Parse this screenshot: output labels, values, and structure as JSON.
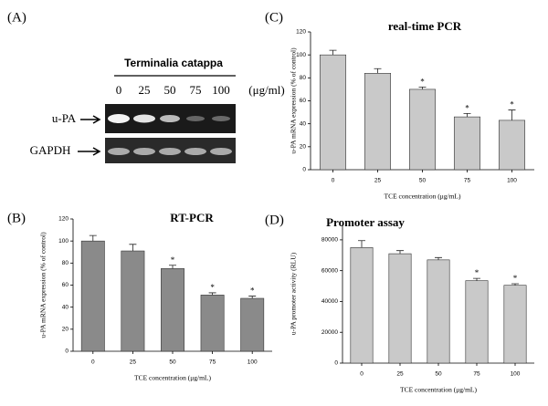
{
  "gel": {
    "panel_label": "(A)",
    "title": "Terminalia catappa",
    "lanes": [
      "0",
      "25",
      "50",
      "75",
      "100"
    ],
    "unit": "(μg/ml)",
    "rows": [
      "u-PA",
      "GAPDH"
    ]
  },
  "chart_data": [
    {
      "type": "bar",
      "panel_label": "(B)",
      "title": "RT-PCR",
      "x_label": "TCE concentration (μg/mL)",
      "y_label": "u-PA mRNA expression (% of control)",
      "categories": [
        "0",
        "25",
        "50",
        "75",
        "100"
      ],
      "values": [
        100,
        91,
        75,
        51,
        48
      ],
      "errors": [
        5,
        6,
        3,
        2,
        2
      ],
      "annotations": [
        null,
        null,
        "*",
        "*",
        "*"
      ],
      "color": "#8a8a8a",
      "ylim": [
        0,
        120
      ],
      "yticks": [
        0,
        20,
        40,
        60,
        80,
        100,
        120
      ]
    },
    {
      "type": "bar",
      "panel_label": "(C)",
      "title": "real-time PCR",
      "x_label": "TCE concentration (μg/mL)",
      "y_label": "u-PA mRNA expression (% of control)",
      "categories": [
        "0",
        "25",
        "50",
        "75",
        "100"
      ],
      "values": [
        100,
        84,
        70,
        46,
        43
      ],
      "errors": [
        4,
        4,
        2,
        3,
        9
      ],
      "annotations": [
        null,
        null,
        "*",
        "*",
        "*"
      ],
      "color": "#c9c9c9",
      "ylim": [
        0,
        120
      ],
      "yticks": [
        0,
        20,
        40,
        60,
        80,
        100,
        120
      ]
    },
    {
      "type": "bar",
      "panel_label": "(D)",
      "title": "Promoter assay",
      "x_label": "TCE concentration (μg/mL)",
      "y_label": "u-PA promoter activity (RLU)",
      "categories": [
        "0",
        "25",
        "50",
        "75",
        "100"
      ],
      "values": [
        75000,
        71000,
        67000,
        53500,
        50500
      ],
      "errors": [
        4500,
        2000,
        1500,
        1500,
        1000
      ],
      "annotations": [
        null,
        null,
        null,
        "*",
        "*"
      ],
      "color": "#c9c9c9",
      "ylim": [
        0,
        90000
      ],
      "yticks": [
        0,
        20000,
        40000,
        60000,
        80000
      ]
    }
  ]
}
